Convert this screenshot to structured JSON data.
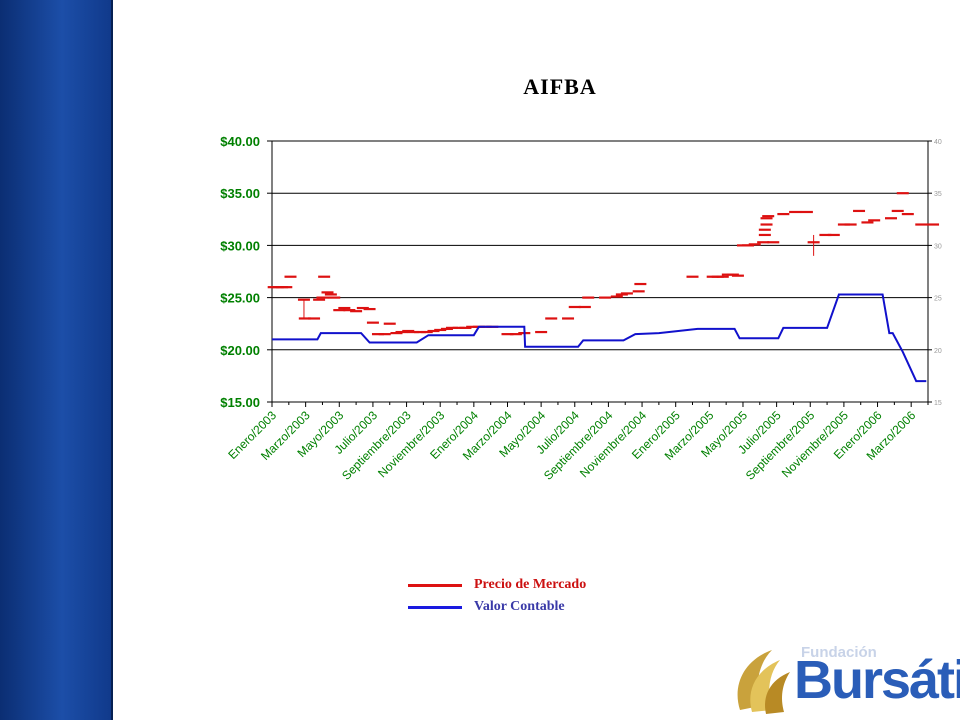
{
  "colors": {
    "price": "#dd1111",
    "book": "#1111cc",
    "axis_left_text": "#008000",
    "band": "#0b2e73"
  },
  "legend": {
    "price_label": "Precio de Mercado",
    "book_label": "Valor Contable"
  },
  "logo": {
    "small_text": "Fundación",
    "big_text": "Bursátil"
  },
  "chart_data": {
    "type": "line",
    "title": "AIFBA",
    "ylim": [
      15,
      40
    ],
    "grid": true,
    "legend_position": "bottom-center",
    "y_ticks": [
      "$40.00",
      "$35.00",
      "$30.00",
      "$25.00",
      "$20.00",
      "$15.00"
    ],
    "y2_ticks": [
      "40",
      "35",
      "30",
      "25",
      "20",
      "15"
    ],
    "categories": [
      "Enero/2003",
      "Marzo/2003",
      "Mayo/2003",
      "Julio/2003",
      "Septiembre/2003",
      "Noviembre/2003",
      "Enero/2004",
      "Marzo/2004",
      "Mayo/2004",
      "Julio/2004",
      "Septiembre/2004",
      "Noviembre/2004",
      "Enero/2005",
      "Marzo/2005",
      "Mayo/2005",
      "Julio/2005",
      "Septiembre/2005",
      "Noviembre/2005",
      "Enero/2006",
      "Marzo/2006"
    ],
    "x_range": [
      0,
      39
    ],
    "series": [
      {
        "name": "Precio de Mercado",
        "color": "#dd1111",
        "style": "dashes",
        "points": [
          [
            0.1,
            26.0
          ],
          [
            0.35,
            26.0
          ],
          [
            0.6,
            26.0
          ],
          [
            0.85,
            26.0
          ],
          [
            1.1,
            27.0
          ],
          [
            1.9,
            24.8
          ],
          [
            1.95,
            23.0
          ],
          [
            2.5,
            23.0
          ],
          [
            2.8,
            24.8
          ],
          [
            3.0,
            25.0
          ],
          [
            3.1,
            27.0
          ],
          [
            3.3,
            25.5
          ],
          [
            3.5,
            25.3
          ],
          [
            3.7,
            25.0
          ],
          [
            4.0,
            23.8
          ],
          [
            4.3,
            24.0
          ],
          [
            4.6,
            23.8
          ],
          [
            5.0,
            23.7
          ],
          [
            5.4,
            24.0
          ],
          [
            5.8,
            23.9
          ],
          [
            6.0,
            22.6
          ],
          [
            6.3,
            21.5
          ],
          [
            6.7,
            21.5
          ],
          [
            7.0,
            22.5
          ],
          [
            7.4,
            21.6
          ],
          [
            7.7,
            21.7
          ],
          [
            8.1,
            21.8
          ],
          [
            8.4,
            21.7
          ],
          [
            8.8,
            21.7
          ],
          [
            9.2,
            21.7
          ],
          [
            9.6,
            21.8
          ],
          [
            10.0,
            21.9
          ],
          [
            10.4,
            22.0
          ],
          [
            10.7,
            22.1
          ],
          [
            11.1,
            22.1
          ],
          [
            11.5,
            22.1
          ],
          [
            11.9,
            22.2
          ],
          [
            12.3,
            22.2
          ],
          [
            12.7,
            22.2
          ],
          [
            13.1,
            22.2
          ],
          [
            14.0,
            21.5
          ],
          [
            14.5,
            21.5
          ],
          [
            15.0,
            21.6
          ],
          [
            16.0,
            21.7
          ],
          [
            16.6,
            23.0
          ],
          [
            17.6,
            23.0
          ],
          [
            18.0,
            24.1
          ],
          [
            18.6,
            24.1
          ],
          [
            18.8,
            25.0
          ],
          [
            19.8,
            25.0
          ],
          [
            20.5,
            25.1
          ],
          [
            20.8,
            25.3
          ],
          [
            21.1,
            25.4
          ],
          [
            21.8,
            25.6
          ],
          [
            21.9,
            26.3
          ],
          [
            25.0,
            27.0
          ],
          [
            26.2,
            27.0
          ],
          [
            26.5,
            27.0
          ],
          [
            26.8,
            27.0
          ],
          [
            27.1,
            27.2
          ],
          [
            27.4,
            27.2
          ],
          [
            27.7,
            27.1
          ],
          [
            28.0,
            30.0
          ],
          [
            28.3,
            30.0
          ],
          [
            28.7,
            30.1
          ],
          [
            29.2,
            30.3
          ],
          [
            29.3,
            31.0
          ],
          [
            29.3,
            31.5
          ],
          [
            29.4,
            32.0
          ],
          [
            29.4,
            32.6
          ],
          [
            29.5,
            32.8
          ],
          [
            29.8,
            30.3
          ],
          [
            30.4,
            33.0
          ],
          [
            31.1,
            33.2
          ],
          [
            31.8,
            33.2
          ],
          [
            32.2,
            30.3
          ],
          [
            32.9,
            31.0
          ],
          [
            33.4,
            31.0
          ],
          [
            34.0,
            32.0
          ],
          [
            34.4,
            32.0
          ],
          [
            34.9,
            33.3
          ],
          [
            35.4,
            32.2
          ],
          [
            35.8,
            32.4
          ],
          [
            36.8,
            32.6
          ],
          [
            37.2,
            33.3
          ],
          [
            37.5,
            35.0
          ],
          [
            37.8,
            33.0
          ],
          [
            38.6,
            32.0
          ],
          [
            39.3,
            32.0
          ]
        ]
      },
      {
        "name": "Valor Contable",
        "color": "#1111cc",
        "style": "line",
        "points": [
          [
            0,
            21.0
          ],
          [
            2.7,
            21.0
          ],
          [
            2.9,
            21.6
          ],
          [
            5.3,
            21.6
          ],
          [
            5.8,
            20.7
          ],
          [
            8.6,
            20.7
          ],
          [
            9.3,
            21.4
          ],
          [
            12.0,
            21.4
          ],
          [
            12.3,
            22.2
          ],
          [
            15.0,
            22.2
          ],
          [
            15.05,
            20.3
          ],
          [
            18.2,
            20.3
          ],
          [
            18.5,
            20.9
          ],
          [
            20.9,
            20.9
          ],
          [
            21.6,
            21.5
          ],
          [
            23.0,
            21.6
          ],
          [
            25.3,
            22.0
          ],
          [
            27.5,
            22.0
          ],
          [
            27.8,
            21.1
          ],
          [
            30.1,
            21.1
          ],
          [
            30.4,
            22.1
          ],
          [
            33.0,
            22.1
          ],
          [
            33.7,
            25.3
          ],
          [
            36.3,
            25.3
          ],
          [
            36.7,
            21.6
          ],
          [
            36.9,
            21.6
          ],
          [
            37.5,
            19.8
          ],
          [
            38.3,
            17.0
          ],
          [
            38.9,
            17.0
          ]
        ]
      }
    ]
  }
}
